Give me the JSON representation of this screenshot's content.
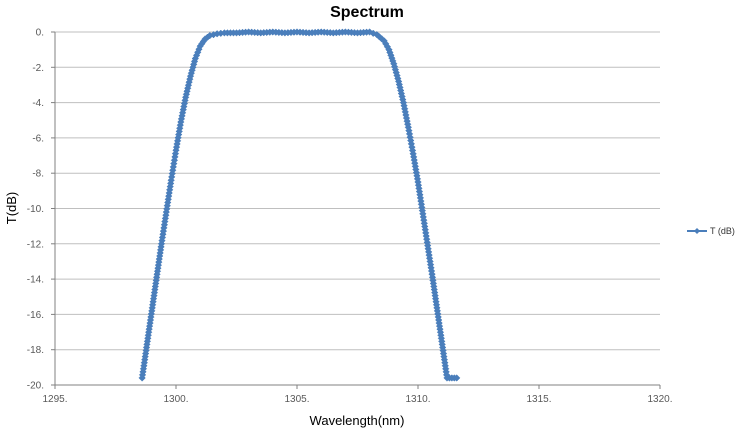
{
  "chart_data": {
    "type": "line",
    "title": "Spectrum",
    "xlabel": "Wavelength(nm)",
    "ylabel": "T(dB)",
    "xlim": [
      1295,
      1320
    ],
    "ylim": [
      -20,
      0
    ],
    "xticks": [
      1295,
      1300,
      1305,
      1310,
      1315,
      1320
    ],
    "yticks": [
      0,
      -2,
      -4,
      -6,
      -8,
      -10,
      -12,
      -14,
      -16,
      -18,
      -20
    ],
    "x_tick_labels": [
      "1295.",
      "1300.",
      "1305.",
      "1310.",
      "1315.",
      "1320."
    ],
    "y_tick_labels": [
      "0.",
      "-2.",
      "-4.",
      "-6.",
      "-8.",
      "-10.",
      "-12.",
      "-14.",
      "-16.",
      "-18.",
      "-20."
    ],
    "grid": "horizontal",
    "legend": "right",
    "color": "#4a7ebb",
    "series": [
      {
        "name": "T (dB)",
        "marker": "diamond",
        "x": [
          1298.6,
          1298.8,
          1299.0,
          1299.2,
          1299.4,
          1299.6,
          1299.8,
          1300.0,
          1300.2,
          1300.4,
          1300.6,
          1300.8,
          1301.0,
          1301.2,
          1301.4,
          1301.7,
          1302.0,
          1302.5,
          1303.0,
          1303.5,
          1304.0,
          1304.5,
          1305.0,
          1305.5,
          1306.0,
          1306.5,
          1307.0,
          1307.5,
          1308.0,
          1308.3,
          1308.6,
          1308.8,
          1309.0,
          1309.2,
          1309.4,
          1309.6,
          1309.8,
          1310.0,
          1310.2,
          1310.4,
          1310.6,
          1310.8,
          1311.0,
          1311.2,
          1311.4,
          1311.6
        ],
        "y": [
          -19.6,
          -17.7,
          -15.8,
          -13.9,
          -12.0,
          -10.2,
          -8.4,
          -6.7,
          -5.1,
          -3.7,
          -2.5,
          -1.5,
          -0.8,
          -0.4,
          -0.2,
          -0.1,
          -0.05,
          -0.05,
          0.0,
          -0.05,
          0.0,
          -0.05,
          0.0,
          -0.05,
          0.0,
          -0.05,
          0.0,
          -0.05,
          0.0,
          -0.15,
          -0.5,
          -1.0,
          -1.8,
          -2.8,
          -4.0,
          -5.4,
          -6.9,
          -8.5,
          -10.3,
          -12.1,
          -13.9,
          -15.8,
          -17.7,
          -19.6,
          -19.6,
          -19.6
        ]
      }
    ]
  }
}
